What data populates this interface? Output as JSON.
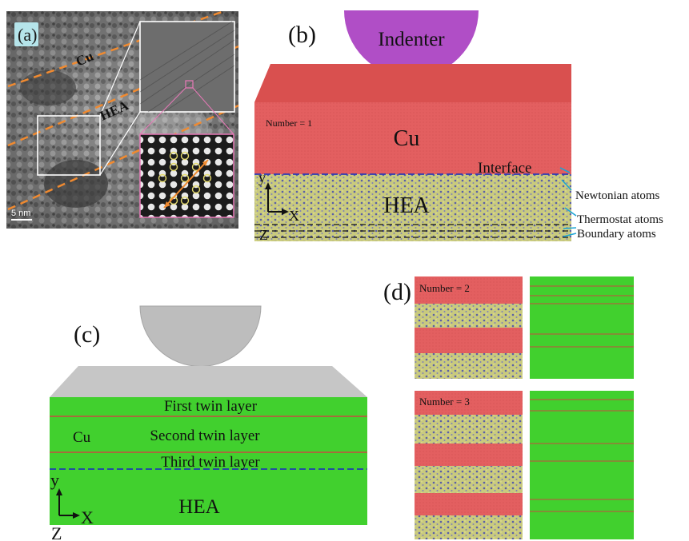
{
  "panels": {
    "a": {
      "label": "(a)",
      "layer_labels": [
        "Cu",
        "HEA"
      ],
      "scale_bar": "5 nm",
      "colors": {
        "dashed_boundary": "#f08a30",
        "zoom_box": "#ffffff",
        "inset_border": "#e879b8"
      }
    },
    "b": {
      "label": "(b)",
      "indenter": "Indenter",
      "number_label": "Number = 1",
      "cu_label": "Cu",
      "hea_label": "HEA",
      "interface": "Interface",
      "newtonian": "Newtonian atoms",
      "thermostat": "Thermostat atoms",
      "boundary": "Boundary atoms",
      "axes": {
        "y": "y",
        "x": "X",
        "z": "Z"
      },
      "colors": {
        "indenter": "#b04ec6",
        "cu": "#e35f60",
        "hea": "#c5c87a",
        "hea_dots": "#5b5fa6",
        "annot": "#1aa4d4"
      }
    },
    "c": {
      "label": "(c)",
      "first_twin": "First twin layer",
      "second_twin": "Second twin layer",
      "third_twin": "Third twin layer",
      "cu_label": "Cu",
      "hea_label": "HEA",
      "axes": {
        "y": "y",
        "x": "X",
        "z": "Z"
      },
      "colors": {
        "body": "#41d02e",
        "top": "#c4c4c4",
        "twin_line": "#c84a40",
        "interface": "#1f3bb0"
      }
    },
    "d": {
      "label": "(d)",
      "number_2": "Number = 2",
      "number_3": "Number = 3",
      "colors": {
        "cu": "#e35f60",
        "hea": "#c5c87a",
        "green": "#41d02e",
        "line": "#c84a40"
      }
    }
  }
}
